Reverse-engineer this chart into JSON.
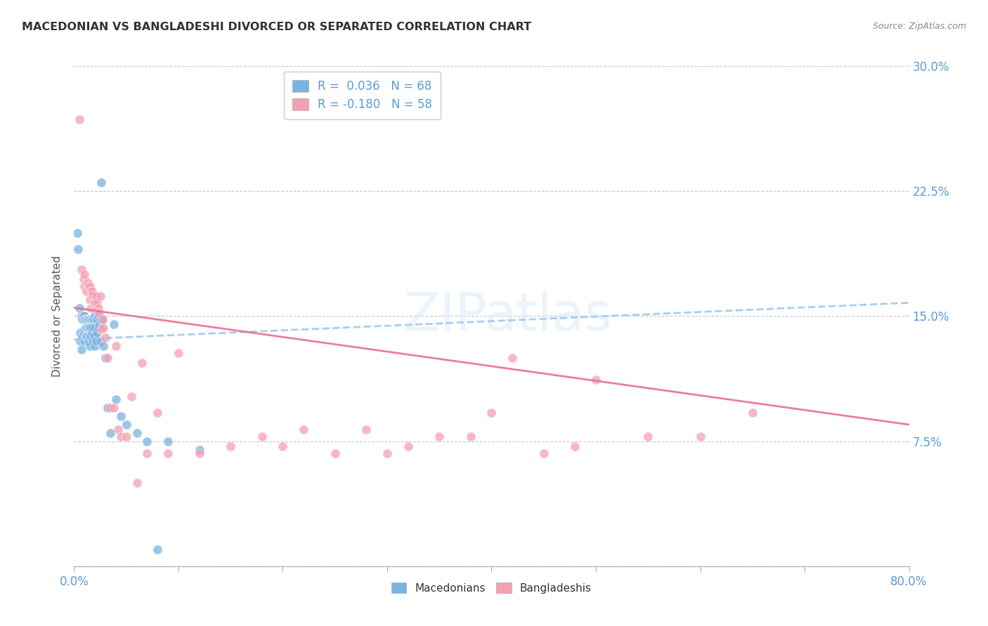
{
  "title": "MACEDONIAN VS BANGLADESHI DIVORCED OR SEPARATED CORRELATION CHART",
  "source": "Source: ZipAtlas.com",
  "ylabel": "Divorced or Separated",
  "xlim": [
    0.0,
    0.8
  ],
  "ylim": [
    0.0,
    0.3
  ],
  "xticks": [
    0.0,
    0.1,
    0.2,
    0.3,
    0.4,
    0.5,
    0.6,
    0.7,
    0.8
  ],
  "xticklabels": [
    "0.0%",
    "",
    "",
    "",
    "",
    "",
    "",
    "",
    "80.0%"
  ],
  "yticks": [
    0.0,
    0.075,
    0.15,
    0.225,
    0.3
  ],
  "yticklabels_right": [
    "",
    "7.5%",
    "15.0%",
    "22.5%",
    "30.0%"
  ],
  "macedonian_color": "#7ab3e0",
  "bangladeshi_color": "#f4a0b5",
  "macedonian_line_color": "#a0c8ee",
  "bangladeshi_line_color": "#e87090",
  "macedonian_R": 0.036,
  "macedonian_N": 68,
  "bangladeshi_R": -0.18,
  "bangladeshi_N": 58,
  "legend_text_color": "#5b9bd5",
  "macedonian_scatter_x": [
    0.003,
    0.004,
    0.005,
    0.006,
    0.006,
    0.007,
    0.007,
    0.008,
    0.008,
    0.009,
    0.009,
    0.01,
    0.01,
    0.01,
    0.01,
    0.011,
    0.011,
    0.011,
    0.012,
    0.012,
    0.012,
    0.013,
    0.013,
    0.013,
    0.014,
    0.014,
    0.014,
    0.015,
    0.015,
    0.015,
    0.015,
    0.016,
    0.016,
    0.016,
    0.017,
    0.017,
    0.018,
    0.018,
    0.018,
    0.019,
    0.019,
    0.02,
    0.02,
    0.02,
    0.021,
    0.021,
    0.022,
    0.022,
    0.023,
    0.023,
    0.024,
    0.025,
    0.025,
    0.026,
    0.027,
    0.028,
    0.03,
    0.032,
    0.035,
    0.038,
    0.04,
    0.045,
    0.05,
    0.06,
    0.07,
    0.08,
    0.09,
    0.12
  ],
  "macedonian_scatter_y": [
    0.2,
    0.19,
    0.155,
    0.14,
    0.135,
    0.15,
    0.13,
    0.148,
    0.138,
    0.15,
    0.14,
    0.15,
    0.148,
    0.142,
    0.135,
    0.148,
    0.143,
    0.138,
    0.148,
    0.143,
    0.138,
    0.148,
    0.143,
    0.138,
    0.148,
    0.143,
    0.135,
    0.148,
    0.143,
    0.138,
    0.132,
    0.148,
    0.143,
    0.138,
    0.148,
    0.14,
    0.148,
    0.143,
    0.135,
    0.148,
    0.138,
    0.15,
    0.143,
    0.132,
    0.148,
    0.135,
    0.148,
    0.14,
    0.15,
    0.143,
    0.145,
    0.148,
    0.135,
    0.23,
    0.148,
    0.132,
    0.125,
    0.095,
    0.08,
    0.145,
    0.1,
    0.09,
    0.085,
    0.08,
    0.075,
    0.01,
    0.075,
    0.07
  ],
  "bangladeshi_scatter_x": [
    0.005,
    0.007,
    0.009,
    0.01,
    0.01,
    0.012,
    0.013,
    0.014,
    0.015,
    0.015,
    0.016,
    0.016,
    0.017,
    0.018,
    0.019,
    0.02,
    0.021,
    0.022,
    0.023,
    0.024,
    0.025,
    0.026,
    0.027,
    0.028,
    0.03,
    0.032,
    0.035,
    0.038,
    0.04,
    0.042,
    0.045,
    0.05,
    0.055,
    0.06,
    0.065,
    0.07,
    0.08,
    0.09,
    0.1,
    0.12,
    0.15,
    0.18,
    0.2,
    0.22,
    0.25,
    0.28,
    0.3,
    0.32,
    0.35,
    0.38,
    0.4,
    0.42,
    0.45,
    0.48,
    0.5,
    0.55,
    0.6,
    0.65
  ],
  "bangladeshi_scatter_y": [
    0.268,
    0.178,
    0.172,
    0.175,
    0.168,
    0.165,
    0.17,
    0.168,
    0.168,
    0.16,
    0.165,
    0.155,
    0.165,
    0.163,
    0.158,
    0.158,
    0.162,
    0.158,
    0.155,
    0.152,
    0.162,
    0.142,
    0.148,
    0.143,
    0.137,
    0.125,
    0.095,
    0.095,
    0.132,
    0.082,
    0.078,
    0.078,
    0.102,
    0.05,
    0.122,
    0.068,
    0.092,
    0.068,
    0.128,
    0.068,
    0.072,
    0.078,
    0.072,
    0.082,
    0.068,
    0.082,
    0.068,
    0.072,
    0.078,
    0.078,
    0.092,
    0.125,
    0.068,
    0.072,
    0.112,
    0.078,
    0.078,
    0.092
  ]
}
